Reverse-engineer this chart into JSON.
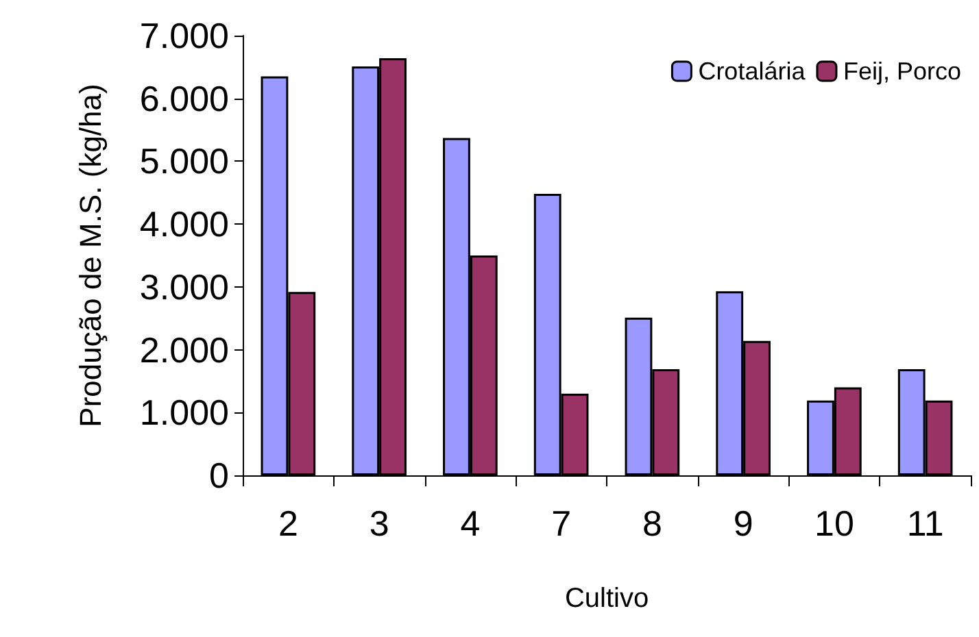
{
  "chart_data": {
    "type": "bar",
    "xlabel": "Cultivo",
    "ylabel": "Produção de M.S. (kg/ha)",
    "categories": [
      "2",
      "3",
      "4",
      "7",
      "8",
      "9",
      "10",
      "11"
    ],
    "series": [
      {
        "name": "Crotalária",
        "color": "#9999ff",
        "values": [
          6350,
          6510,
          5370,
          4480,
          2510,
          2930,
          1190,
          1690
        ]
      },
      {
        "name": "Feij, Porco",
        "color": "#993366",
        "values": [
          2920,
          6640,
          3500,
          1300,
          1690,
          2140,
          1400,
          1190
        ]
      }
    ],
    "ylim": [
      0,
      7000
    ],
    "yticks": [
      {
        "value": 0,
        "label": "0"
      },
      {
        "value": 1000,
        "label": "1.000"
      },
      {
        "value": 2000,
        "label": "2.000"
      },
      {
        "value": 3000,
        "label": "3.000"
      },
      {
        "value": 4000,
        "label": "4.000"
      },
      {
        "value": 5000,
        "label": "5.000"
      },
      {
        "value": 6000,
        "label": "6.000"
      },
      {
        "value": 7000,
        "label": "7.000"
      }
    ],
    "grid": false,
    "legend": "top right"
  }
}
